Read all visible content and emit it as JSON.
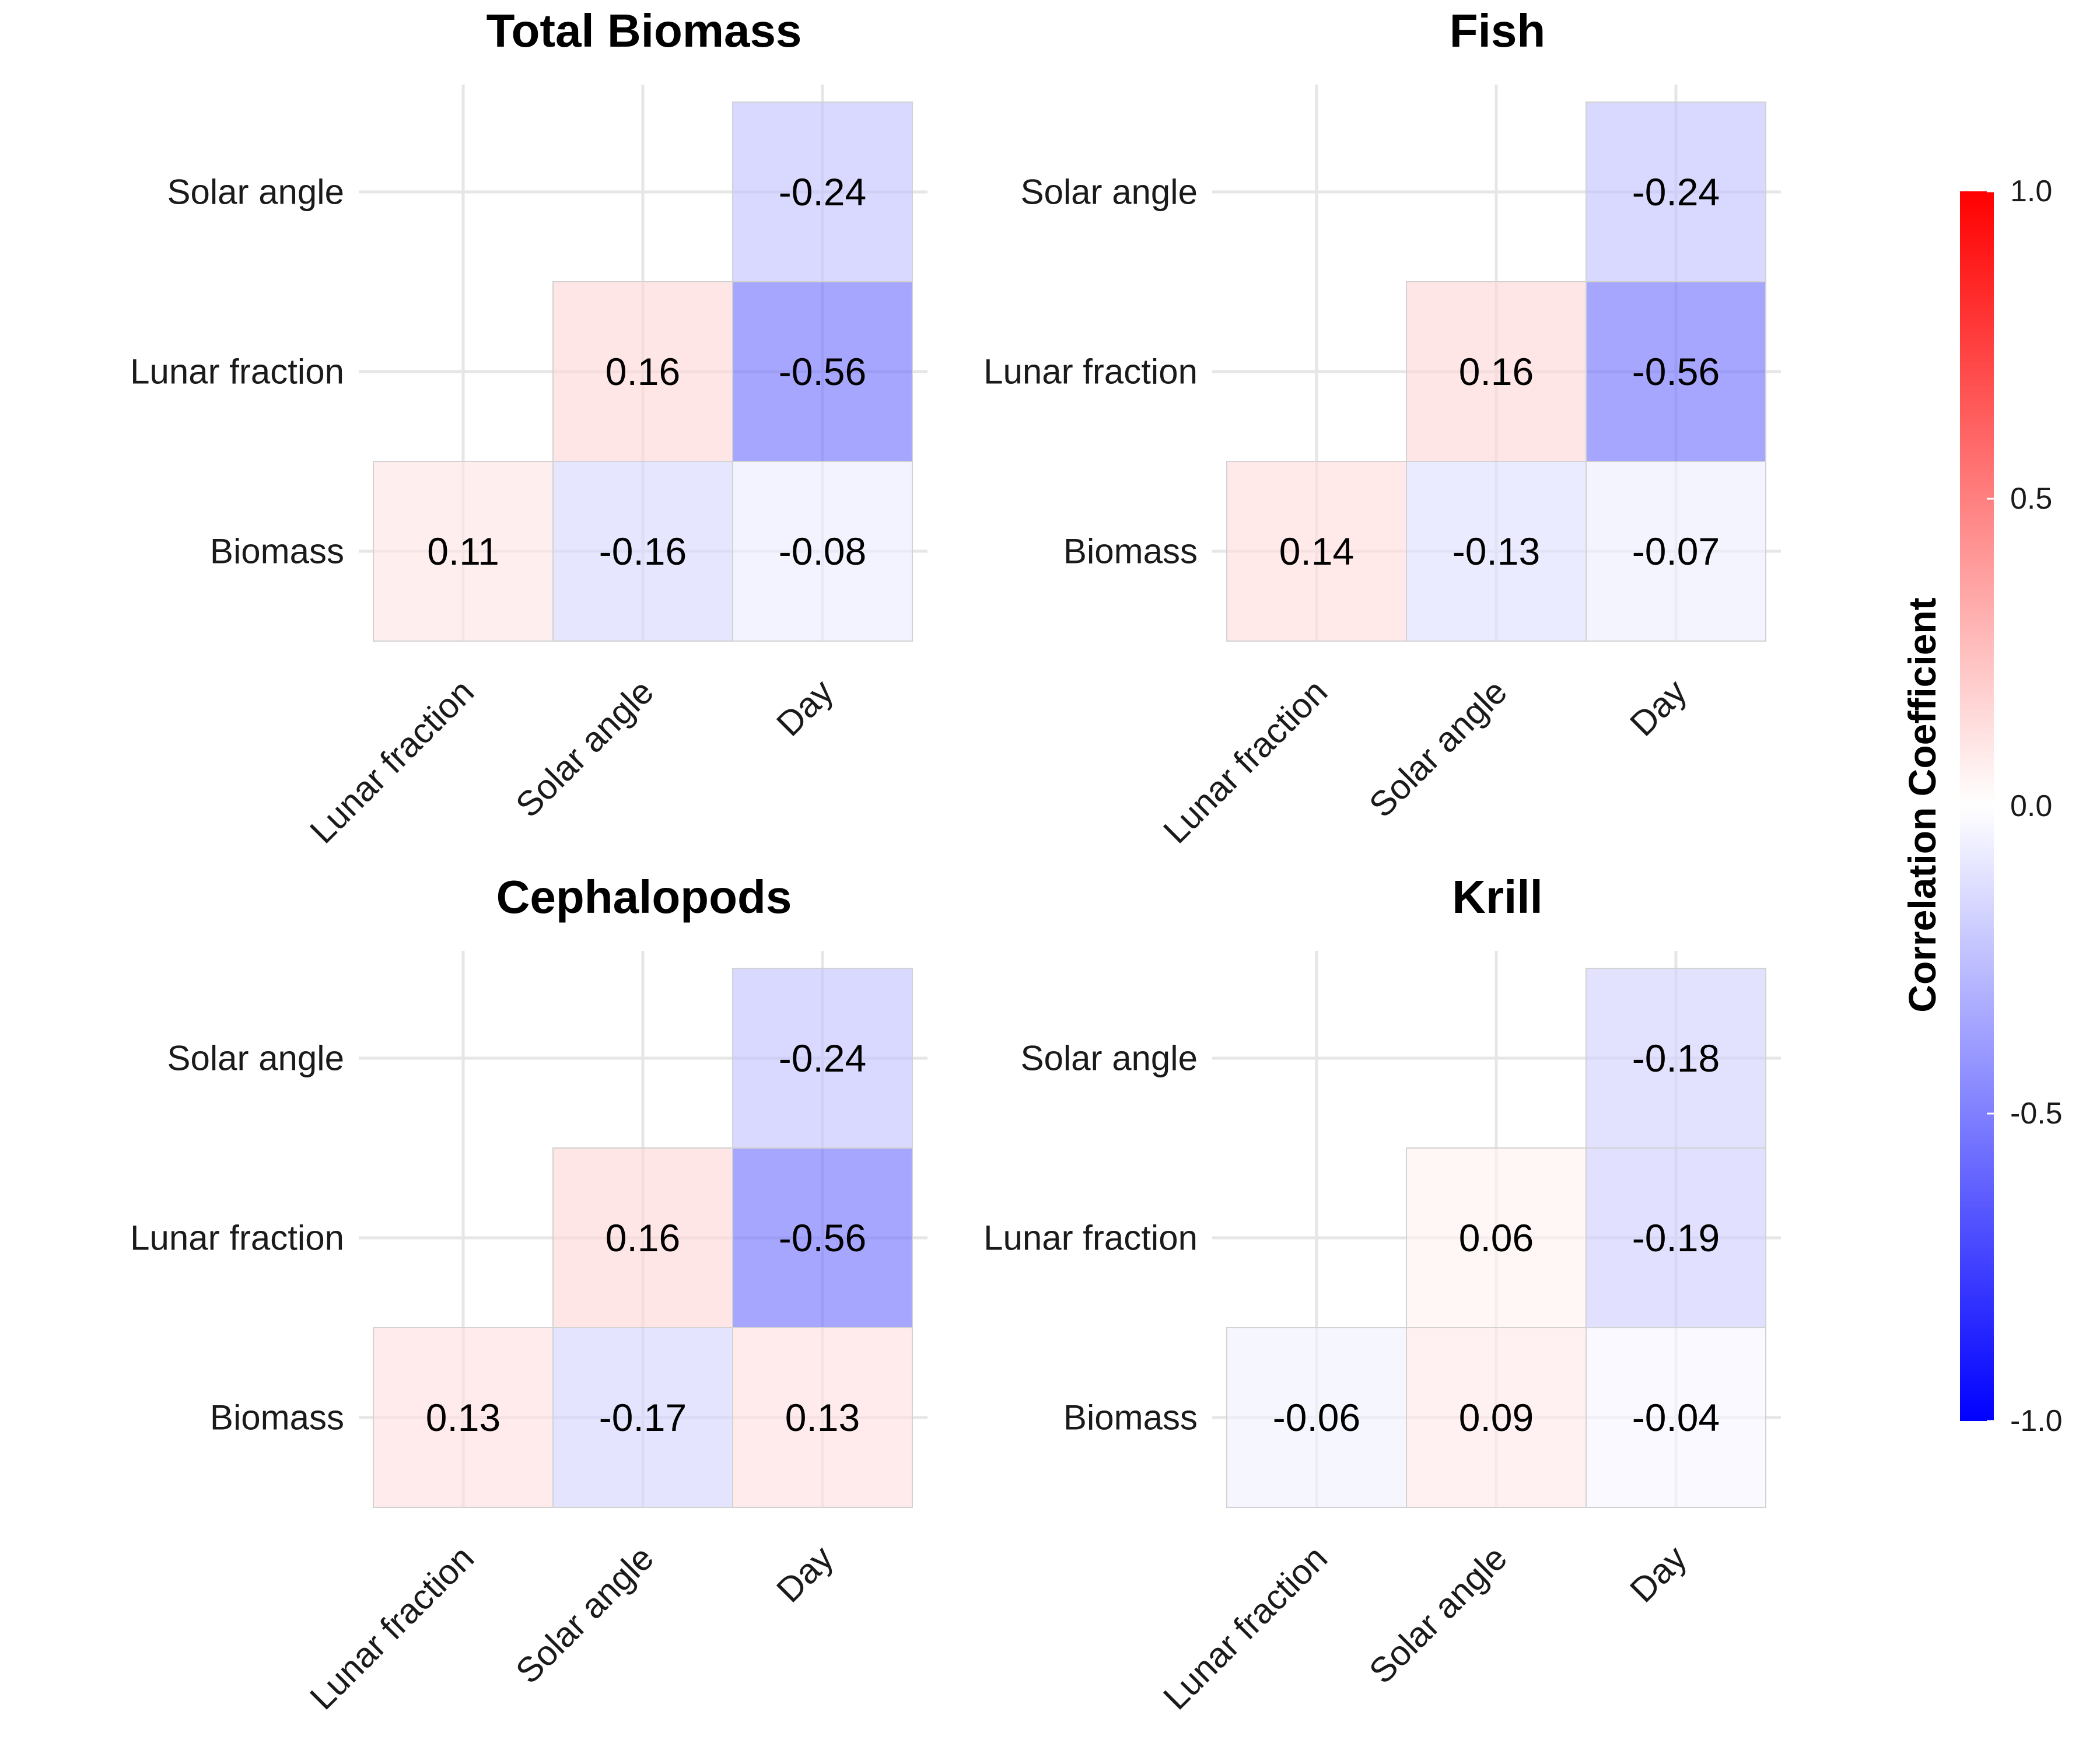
{
  "chart_data": [
    {
      "type": "heatmap",
      "title": "Total Biomass",
      "x_categories": [
        "Lunar fraction",
        "Solar angle",
        "Day"
      ],
      "y_categories": [
        "Biomass",
        "Lunar fraction",
        "Solar angle"
      ],
      "cells": [
        {
          "x": "Lunar fraction",
          "y": "Biomass",
          "value": 0.11
        },
        {
          "x": "Solar angle",
          "y": "Biomass",
          "value": -0.16
        },
        {
          "x": "Day",
          "y": "Biomass",
          "value": -0.08
        },
        {
          "x": "Solar angle",
          "y": "Lunar fraction",
          "value": 0.16
        },
        {
          "x": "Day",
          "y": "Lunar fraction",
          "value": -0.56
        },
        {
          "x": "Day",
          "y": "Solar angle",
          "value": -0.24
        }
      ]
    },
    {
      "type": "heatmap",
      "title": "Fish",
      "x_categories": [
        "Lunar fraction",
        "Solar angle",
        "Day"
      ],
      "y_categories": [
        "Biomass",
        "Lunar fraction",
        "Solar angle"
      ],
      "cells": [
        {
          "x": "Lunar fraction",
          "y": "Biomass",
          "value": 0.14
        },
        {
          "x": "Solar angle",
          "y": "Biomass",
          "value": -0.13
        },
        {
          "x": "Day",
          "y": "Biomass",
          "value": -0.07
        },
        {
          "x": "Solar angle",
          "y": "Lunar fraction",
          "value": 0.16
        },
        {
          "x": "Day",
          "y": "Lunar fraction",
          "value": -0.56
        },
        {
          "x": "Day",
          "y": "Solar angle",
          "value": -0.24
        }
      ]
    },
    {
      "type": "heatmap",
      "title": "Cephalopods",
      "x_categories": [
        "Lunar fraction",
        "Solar angle",
        "Day"
      ],
      "y_categories": [
        "Biomass",
        "Lunar fraction",
        "Solar angle"
      ],
      "cells": [
        {
          "x": "Lunar fraction",
          "y": "Biomass",
          "value": 0.13
        },
        {
          "x": "Solar angle",
          "y": "Biomass",
          "value": -0.17
        },
        {
          "x": "Day",
          "y": "Biomass",
          "value": 0.13
        },
        {
          "x": "Solar angle",
          "y": "Lunar fraction",
          "value": 0.16
        },
        {
          "x": "Day",
          "y": "Lunar fraction",
          "value": -0.56
        },
        {
          "x": "Day",
          "y": "Solar angle",
          "value": -0.24
        }
      ]
    },
    {
      "type": "heatmap",
      "title": "Krill",
      "x_categories": [
        "Lunar fraction",
        "Solar angle",
        "Day"
      ],
      "y_categories": [
        "Biomass",
        "Lunar fraction",
        "Solar angle"
      ],
      "cells": [
        {
          "x": "Lunar fraction",
          "y": "Biomass",
          "value": -0.06
        },
        {
          "x": "Solar angle",
          "y": "Biomass",
          "value": 0.09
        },
        {
          "x": "Day",
          "y": "Biomass",
          "value": -0.04
        },
        {
          "x": "Solar angle",
          "y": "Lunar fraction",
          "value": 0.06
        },
        {
          "x": "Day",
          "y": "Lunar fraction",
          "value": -0.19
        },
        {
          "x": "Day",
          "y": "Solar angle",
          "value": -0.18
        }
      ]
    }
  ],
  "legend": {
    "title": "Correlation Coefficient",
    "limits": [
      -1.0,
      1.0
    ],
    "ticks": [
      {
        "value": 1.0,
        "label": "1.0"
      },
      {
        "value": 0.5,
        "label": "0.5"
      },
      {
        "value": 0.0,
        "label": "0.0"
      },
      {
        "value": -0.5,
        "label": "-0.5"
      },
      {
        "value": -1.0,
        "label": "-1.0"
      }
    ],
    "colors": {
      "low": "#0000ff",
      "mid": "#ffffff",
      "high": "#ff0000"
    },
    "placement": "right"
  }
}
